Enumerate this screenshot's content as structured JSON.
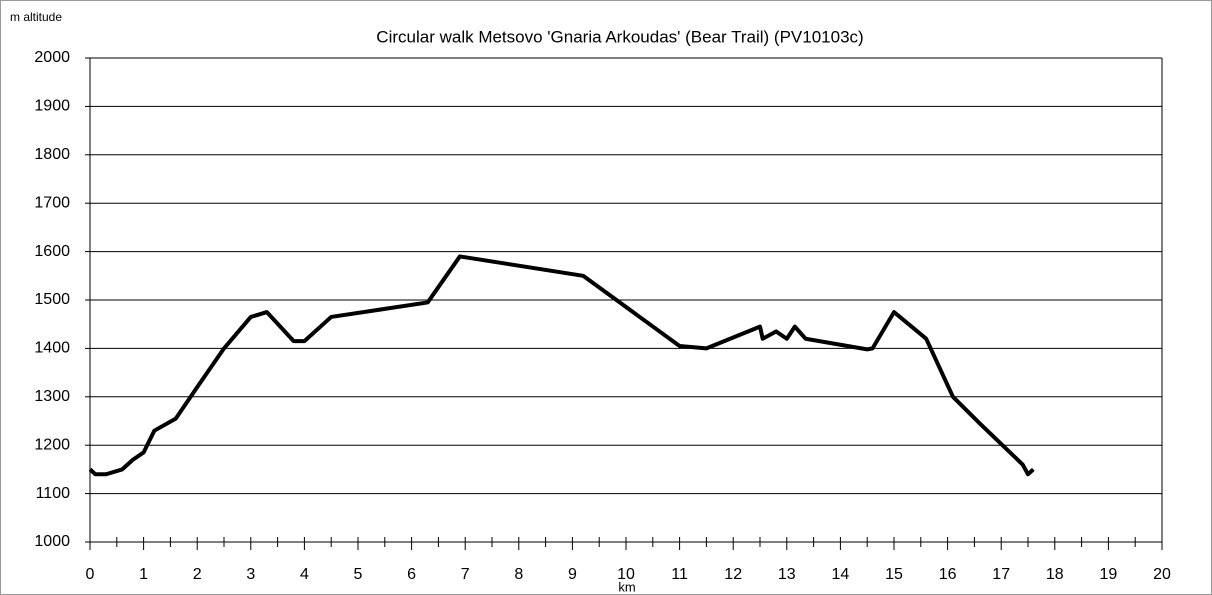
{
  "chart_data": {
    "type": "line",
    "title": "Circular walk Metsovo 'Gnaria Arkoudas' (Bear Trail) (PV10103c)",
    "y_label": "m altitude",
    "x_label": "km",
    "x": [
      0,
      0.1,
      0.3,
      0.6,
      0.8,
      1.0,
      1.2,
      1.6,
      2.0,
      2.5,
      3.0,
      3.3,
      3.8,
      4.0,
      4.5,
      6.3,
      6.9,
      9.2,
      11.0,
      11.5,
      12.5,
      12.55,
      12.8,
      13.0,
      13.15,
      13.35,
      14.5,
      14.6,
      15.0,
      15.6,
      16.1,
      16.6,
      17.4,
      17.5,
      17.6
    ],
    "series": [
      {
        "name": "altitude",
        "color": "#000000",
        "values": [
          1150,
          1140,
          1140,
          1150,
          1170,
          1185,
          1230,
          1255,
          1320,
          1400,
          1465,
          1475,
          1415,
          1415,
          1465,
          1495,
          1590,
          1550,
          1405,
          1400,
          1445,
          1420,
          1435,
          1420,
          1445,
          1420,
          1398,
          1400,
          1475,
          1420,
          1300,
          1245,
          1160,
          1140,
          1150
        ]
      }
    ],
    "xlim": [
      0,
      20
    ],
    "xticks": [
      0,
      1,
      2,
      3,
      4,
      5,
      6,
      7,
      8,
      9,
      10,
      11,
      12,
      13,
      14,
      15,
      16,
      17,
      18,
      19,
      20
    ],
    "ylim": [
      1000,
      2000
    ],
    "yticks": [
      1000,
      1100,
      1200,
      1300,
      1400,
      1500,
      1600,
      1700,
      1800,
      1900,
      2000
    ],
    "grid": true
  }
}
